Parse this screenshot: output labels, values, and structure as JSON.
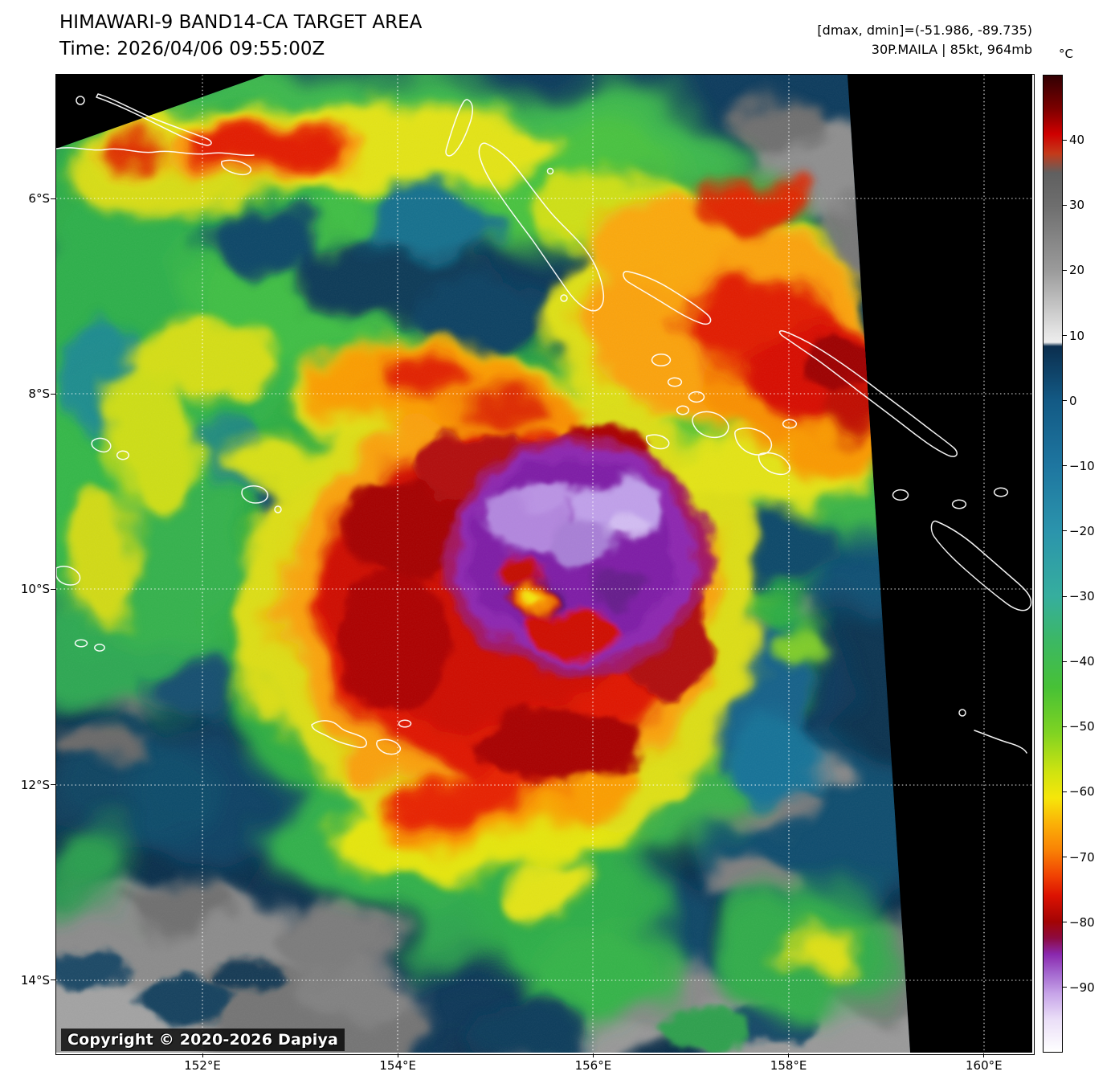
{
  "header": {
    "title": "HIMAWARI-9 BAND14-CA TARGET AREA",
    "time": "Time: 2026/04/06 09:55:00Z",
    "dmax_dmin": "[dmax, dmin]=(-51.986, -89.735)",
    "storm": "30P.MAILA | 85kt, 964mb"
  },
  "map": {
    "copyright": "Copyright © 2020-2026 Dapiya"
  },
  "axes": {
    "lat_ticks": [
      "6°S",
      "8°S",
      "10°S",
      "12°S",
      "14°S"
    ],
    "lon_ticks": [
      "152°E",
      "154°E",
      "156°E",
      "158°E",
      "160°E"
    ]
  },
  "colorbar": {
    "unit": "°C",
    "vmax": 50,
    "vmin": -100,
    "ticks": [
      40,
      30,
      20,
      10,
      0,
      -10,
      -20,
      -30,
      -40,
      -50,
      -60,
      -70,
      -80,
      -90
    ],
    "stops": [
      {
        "value": 50,
        "color": "#320003"
      },
      {
        "value": 45,
        "color": "#7a0000"
      },
      {
        "value": 41,
        "color": "#cf0000"
      },
      {
        "value": 38,
        "color": "#c43a1a"
      },
      {
        "value": 35,
        "color": "#606060"
      },
      {
        "value": 30,
        "color": "#6e6e6e"
      },
      {
        "value": 20,
        "color": "#9b9b9b"
      },
      {
        "value": 11,
        "color": "#e0e0e0"
      },
      {
        "value": 9,
        "color": "#ededed"
      },
      {
        "value": 8.4,
        "color": "#0b2e4e"
      },
      {
        "value": 0,
        "color": "#135a85"
      },
      {
        "value": -10,
        "color": "#1e76a0"
      },
      {
        "value": -20,
        "color": "#2b94ac"
      },
      {
        "value": -30,
        "color": "#36ae9e"
      },
      {
        "value": -37,
        "color": "#3cb863"
      },
      {
        "value": -44,
        "color": "#47c136"
      },
      {
        "value": -51,
        "color": "#7fd322"
      },
      {
        "value": -57,
        "color": "#cfe310"
      },
      {
        "value": -61,
        "color": "#f6e60a"
      },
      {
        "value": -65,
        "color": "#fbb007"
      },
      {
        "value": -69,
        "color": "#f98205"
      },
      {
        "value": -73,
        "color": "#f04103"
      },
      {
        "value": -76,
        "color": "#dc1202"
      },
      {
        "value": -80,
        "color": "#a30404"
      },
      {
        "value": -82.5,
        "color": "#8d0a3f"
      },
      {
        "value": -85,
        "color": "#8a28ae"
      },
      {
        "value": -88,
        "color": "#a468cf"
      },
      {
        "value": -91,
        "color": "#c6a3e8"
      },
      {
        "value": -95,
        "color": "#eadef7"
      },
      {
        "value": -100,
        "color": "#ffffff"
      }
    ]
  },
  "palette": {
    "space_background": "#000000",
    "ocean": "#0c3552",
    "convection_red": "#dc1202",
    "cold_core_purple": "#8a28ae",
    "coldest_lavender": "#c6a3e8",
    "coastline": "#ffffff",
    "grid": "#ffffff"
  }
}
